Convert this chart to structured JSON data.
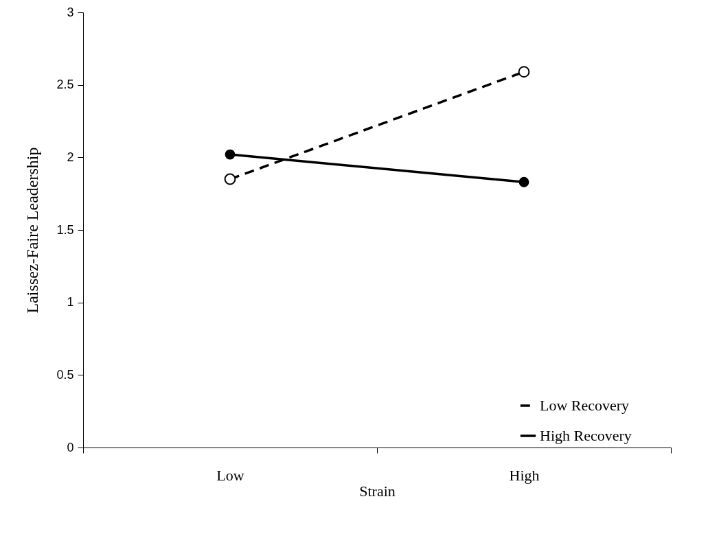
{
  "chart_data": {
    "type": "line",
    "xlabel": "Strain",
    "ylabel": "Laissez-Faire Leadership",
    "categories": [
      "Low",
      "High"
    ],
    "series": [
      {
        "name": "Low Recovery",
        "color": "#000000",
        "line_style": "dashed",
        "values": [
          1.85,
          2.59
        ]
      },
      {
        "name": "High Recovery",
        "color": "#000000",
        "line_style": "solid",
        "values": [
          2.02,
          1.83
        ]
      }
    ],
    "ylim": [
      0,
      3
    ],
    "yticks": [
      0,
      0.5,
      1,
      1.5,
      2,
      2.5,
      3
    ],
    "grid": false,
    "legend": "bottom right",
    "marker": "circle"
  }
}
